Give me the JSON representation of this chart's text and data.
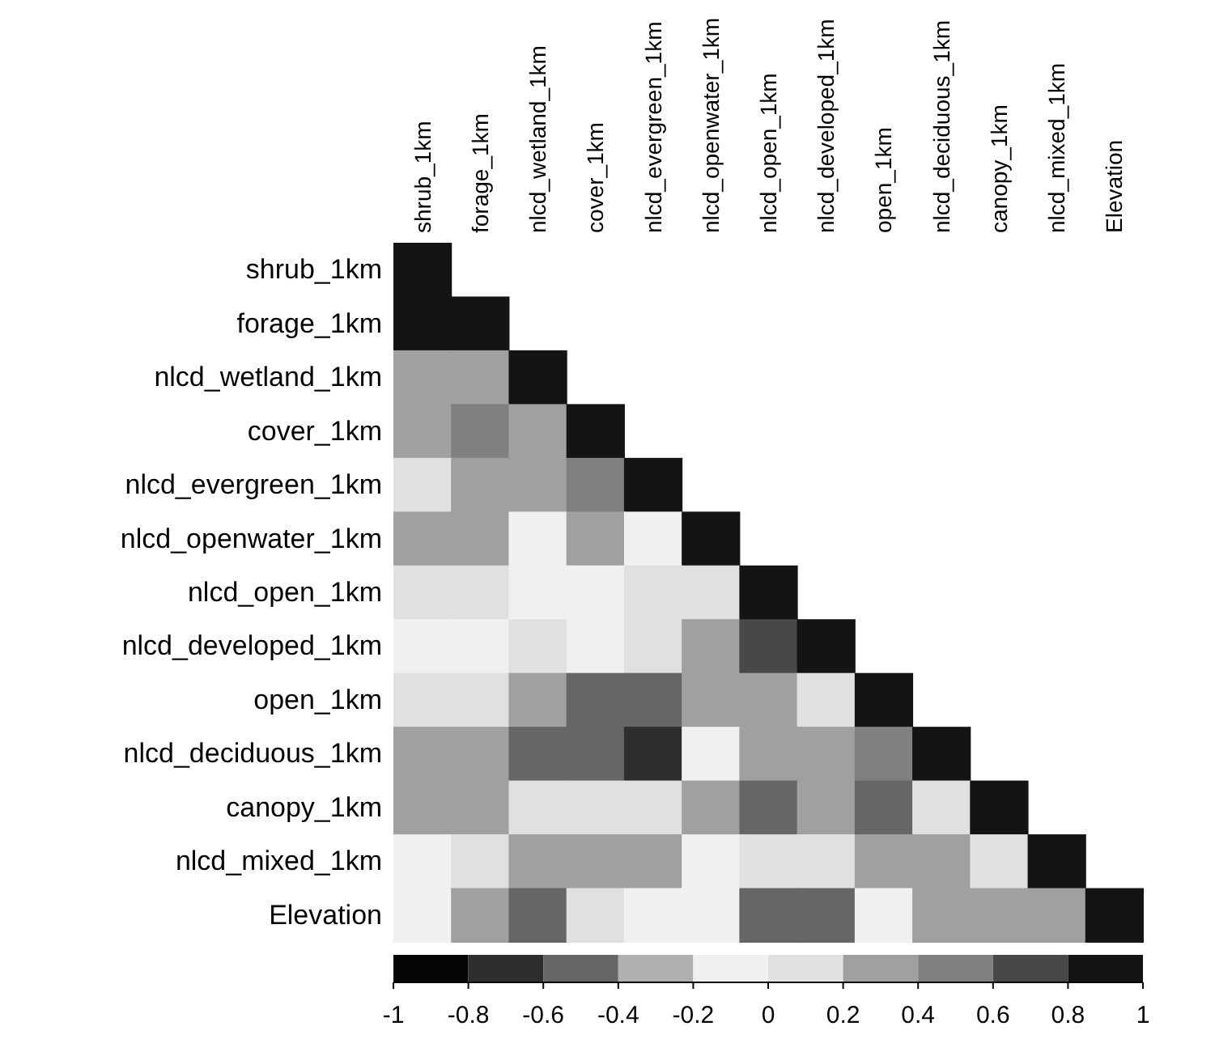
{
  "chart_data": {
    "type": "heatmap",
    "categories": [
      "shrub_1km",
      "forage_1km",
      "nlcd_wetland_1km",
      "cover_1km",
      "nlcd_evergreen_1km",
      "nlcd_openwater_1km",
      "nlcd_open_1km",
      "nlcd_developed_1km",
      "open_1km",
      "nlcd_deciduous_1km",
      "canopy_1km",
      "nlcd_mixed_1km",
      "Elevation"
    ],
    "y_categories": [
      "shrub_1km",
      "forage_1km",
      "nlcd_wetland_1km",
      "cover_1km",
      "nlcd_evergreen_1km",
      "nlcd_openwater_1km",
      "nlcd_open_1km",
      "nlcd_developed_1km",
      "open_1km",
      "nlcd_deciduous_1km",
      "canopy_1km",
      "nlcd_mixed_1km",
      "Elevation"
    ],
    "cells": [
      [
        1,
        null,
        null,
        null,
        null,
        null,
        null,
        null,
        null,
        null,
        null,
        null,
        null
      ],
      [
        0.9,
        1,
        null,
        null,
        null,
        null,
        null,
        null,
        null,
        null,
        null,
        null,
        null
      ],
      [
        0.3,
        0.3,
        1,
        null,
        null,
        null,
        null,
        null,
        null,
        null,
        null,
        null,
        null
      ],
      [
        0.3,
        0.5,
        0.3,
        1,
        null,
        null,
        null,
        null,
        null,
        null,
        null,
        null,
        null
      ],
      [
        0.1,
        0.3,
        0.3,
        0.5,
        1,
        null,
        null,
        null,
        null,
        null,
        null,
        null,
        null
      ],
      [
        0.3,
        0.3,
        -0.1,
        0.3,
        -0.1,
        1,
        null,
        null,
        null,
        null,
        null,
        null,
        null
      ],
      [
        0.1,
        0.1,
        -0.1,
        -0.1,
        0.1,
        0.1,
        1,
        null,
        null,
        null,
        null,
        null,
        null
      ],
      [
        -0.1,
        -0.1,
        0.1,
        -0.1,
        0.1,
        0.3,
        0.7,
        1,
        null,
        null,
        null,
        null,
        null
      ],
      [
        0.1,
        0.1,
        0.3,
        -0.5,
        -0.5,
        0.3,
        0.3,
        0.1,
        1,
        null,
        null,
        null,
        null
      ],
      [
        0.3,
        0.3,
        -0.5,
        -0.5,
        -0.7,
        -0.1,
        0.3,
        0.3,
        0.5,
        1,
        null,
        null,
        null
      ],
      [
        0.3,
        0.3,
        0.1,
        0.1,
        0.1,
        0.3,
        -0.5,
        0.3,
        -0.5,
        0.1,
        1,
        null,
        null
      ],
      [
        -0.1,
        0.1,
        0.3,
        0.3,
        0.3,
        -0.1,
        0.1,
        0.1,
        0.3,
        0.3,
        0.1,
        1,
        null
      ],
      [
        -0.1,
        0.3,
        -0.5,
        0.1,
        -0.1,
        -0.1,
        -0.5,
        -0.5,
        -0.1,
        0.3,
        0.3,
        0.3,
        1
      ]
    ],
    "clim": [
      -1,
      1
    ],
    "cticks": [
      -1,
      -0.8,
      -0.6,
      -0.4,
      -0.2,
      0,
      0.2,
      0.4,
      0.6,
      0.8,
      1
    ],
    "colors": [
      "#050505",
      "#2e2e2e",
      "#666666",
      "#b0b0b0",
      "#f0f0f0",
      "#e0e0e0",
      "#a0a0a0",
      "#808080",
      "#484848",
      "#141414"
    ]
  }
}
